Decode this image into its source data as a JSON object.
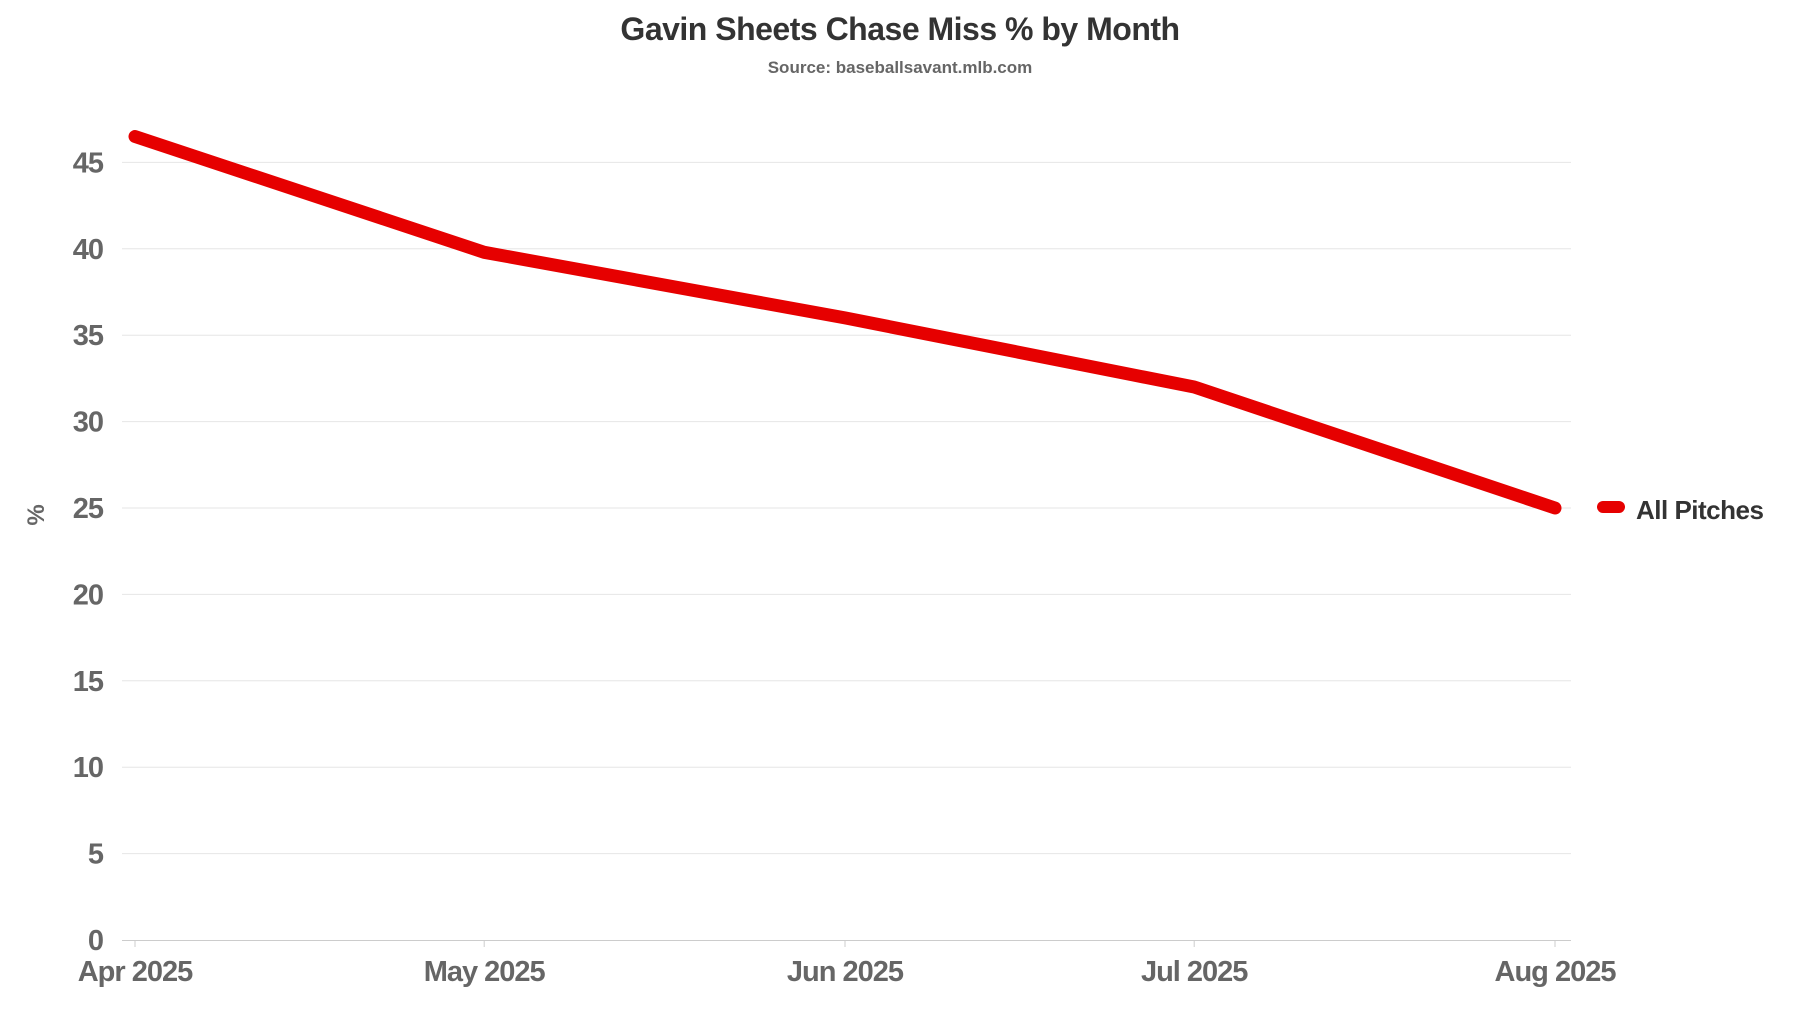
{
  "chart_data": {
    "type": "line",
    "title": "Gavin Sheets Chase Miss % by Month",
    "subtitle": "Source: baseballsavant.mlb.com",
    "xlabel": "",
    "ylabel": "%",
    "categories": [
      "Apr 2025",
      "May 2025",
      "Jun 2025",
      "Jul 2025",
      "Aug 2025"
    ],
    "x_day_offsets": [
      0,
      30,
      61,
      91,
      122
    ],
    "series": [
      {
        "name": "All Pitches",
        "color": "#e60000",
        "values": [
          46.5,
          39.8,
          36.0,
          32.0,
          25.0
        ]
      }
    ],
    "ylim": [
      0,
      47.5
    ],
    "y_ticks": [
      0,
      5,
      10,
      15,
      20,
      25,
      30,
      35,
      40,
      45
    ],
    "grid": true,
    "legend_position": "right-middle",
    "colors": {
      "line": "#e60000",
      "grid": "#e6e6e6",
      "axis": "#cccccc",
      "tick_labels": "#666666",
      "title": "#333333",
      "legend_text": "#333333",
      "background": "#ffffff"
    }
  }
}
